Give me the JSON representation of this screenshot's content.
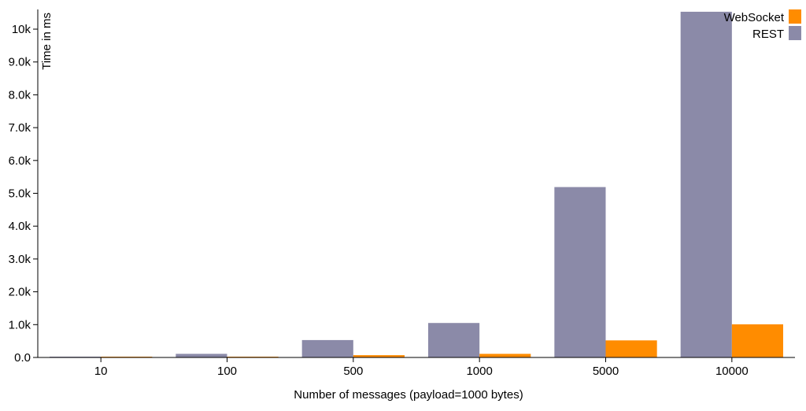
{
  "chart_data": {
    "type": "bar",
    "xlabel": "Number of messages (payload=1000 bytes)",
    "ylabel": "Time in ms",
    "ylim": [
      0,
      10600
    ],
    "yticks": [
      0,
      1000,
      2000,
      3000,
      4000,
      5000,
      6000,
      7000,
      8000,
      9000,
      10000
    ],
    "ytick_labels": [
      "0.0",
      "1.0k",
      "2.0k",
      "3.0k",
      "4.0k",
      "5.0k",
      "6.0k",
      "7.0k",
      "8.0k",
      "9.0k",
      "10k"
    ],
    "categories": [
      "10",
      "100",
      "500",
      "1000",
      "5000",
      "10000"
    ],
    "series": [
      {
        "name": "REST",
        "color": "#8b8aa8",
        "values": [
          10,
          110,
          530,
          1050,
          5190,
          10530
        ]
      },
      {
        "name": "WebSocket",
        "color": "#ff8c00",
        "values": [
          5,
          15,
          70,
          110,
          520,
          1010
        ]
      }
    ],
    "legend": {
      "position": "top-right",
      "items": [
        {
          "label": "WebSocket",
          "color": "#ff8c00"
        },
        {
          "label": "REST",
          "color": "#8b8aa8"
        }
      ]
    },
    "grid": false
  }
}
